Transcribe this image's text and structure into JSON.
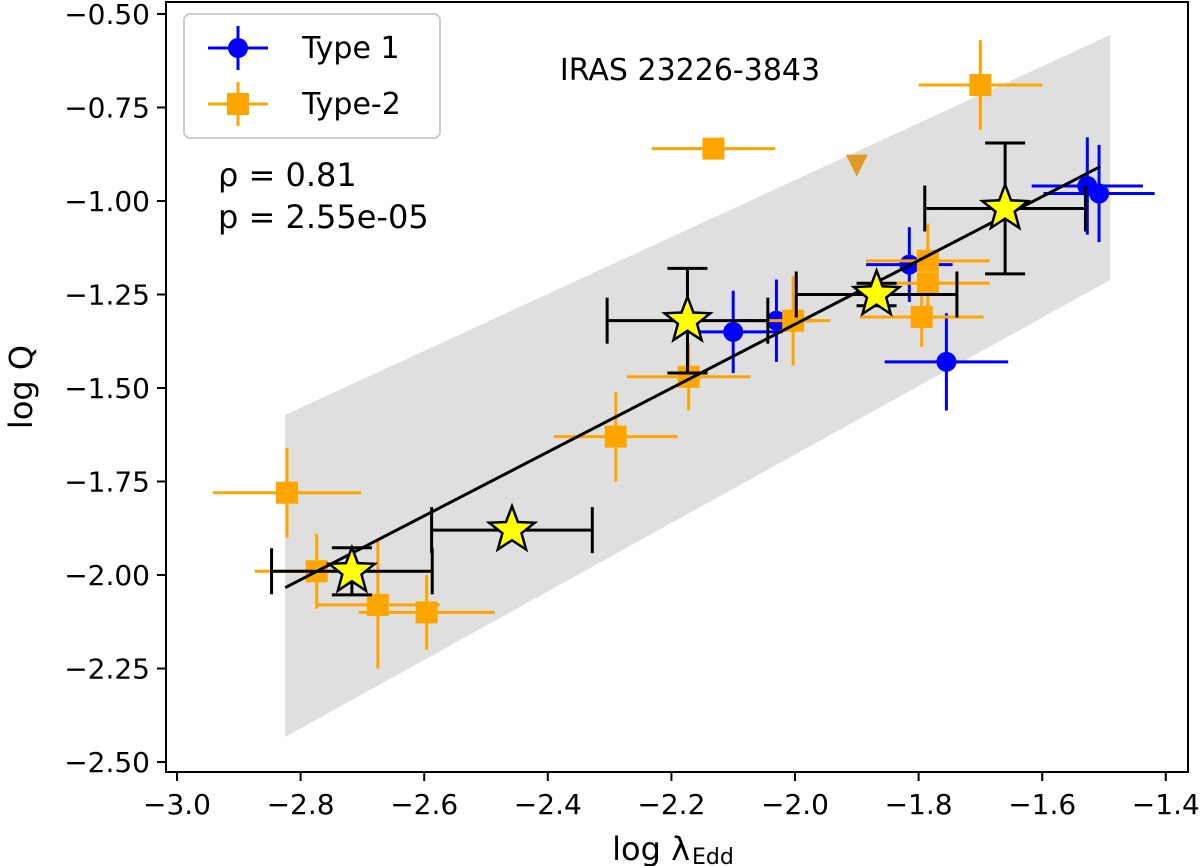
{
  "chart_data": {
    "type": "scatter",
    "xlabel": "log λ",
    "xlabel_sub": "Edd",
    "ylabel": "log Q",
    "xlim": [
      -3.02,
      -1.37
    ],
    "ylim": [
      -2.56,
      -0.47
    ],
    "xticks": [
      -3.0,
      -2.8,
      -2.6,
      -2.4,
      -2.2,
      -2.0,
      -1.8,
      -1.6,
      -1.4
    ],
    "xtick_labels": [
      "−3.0",
      "−2.8",
      "−2.6",
      "−2.4",
      "−2.2",
      "−2.0",
      "−1.8",
      "−1.6",
      "−1.4"
    ],
    "yticks": [
      -2.5,
      -2.25,
      -2.0,
      -1.75,
      -1.5,
      -1.25,
      -1.0,
      -0.75,
      -0.5
    ],
    "ytick_labels": [
      "−2.50",
      "−2.25",
      "−2.00",
      "−1.75",
      "−1.50",
      "−1.25",
      "−1.00",
      "−0.75",
      "−0.50"
    ],
    "grid": false,
    "legend_position": "top-left",
    "annotation": "IRAS 23226-3843",
    "stats": {
      "rho_label": "ρ = 0.81",
      "p_label": "p = 2.55e-05"
    },
    "series": [
      {
        "name": "Type 1",
        "marker": "circle",
        "color": "#0000ff",
        "points": [
          {
            "x": -2.1,
            "y": -1.35,
            "xerr": 0.08,
            "yerr": 0.11
          },
          {
            "x": -2.03,
            "y": -1.32,
            "xerr": 0.06,
            "yerr": 0.11
          },
          {
            "x": -1.815,
            "y": -1.17,
            "xerr": 0.07,
            "yerr": 0.1
          },
          {
            "x": -1.755,
            "y": -1.43,
            "xerr": 0.1,
            "yerr": 0.13
          },
          {
            "x": -1.527,
            "y": -0.96,
            "xerr": 0.09,
            "yerr": 0.13
          },
          {
            "x": -1.508,
            "y": -0.98,
            "xerr": 0.09,
            "yerr": 0.13
          }
        ]
      },
      {
        "name": "Type-2",
        "marker": "square",
        "color": "#ffa500",
        "points": [
          {
            "x": -2.132,
            "y": -0.86,
            "xerr": 0.1,
            "yerr": 0
          },
          {
            "x": -2.003,
            "y": -1.32,
            "xerr": 0.06,
            "yerr": 0.12
          },
          {
            "x": -1.785,
            "y": -1.16,
            "xerr": 0.1,
            "yerr": 0.1
          },
          {
            "x": -1.785,
            "y": -1.22,
            "xerr": 0.1,
            "yerr": 0.1
          },
          {
            "x": -1.795,
            "y": -1.31,
            "xerr": 0.1,
            "yerr": 0.08
          },
          {
            "x": -2.172,
            "y": -1.47,
            "xerr": 0.1,
            "yerr": 0.09
          },
          {
            "x": -2.29,
            "y": -1.63,
            "xerr": 0.1,
            "yerr": 0.12
          },
          {
            "x": -1.7,
            "y": -0.69,
            "xerr": 0.1,
            "yerr": 0.12
          },
          {
            "x": -2.822,
            "y": -1.78,
            "xerr": 0.12,
            "yerr": 0.12
          },
          {
            "x": -2.774,
            "y": -1.99,
            "xerr": 0.1,
            "yerr": 0.1
          },
          {
            "x": -2.675,
            "y": -2.08,
            "xerr": 0.1,
            "yerr": 0.17
          },
          {
            "x": -2.596,
            "y": -2.1,
            "xerr": 0.11,
            "yerr": 0.1
          }
        ]
      },
      {
        "marker": "triangle-down",
        "color": "#e09a2a",
        "points": [
          {
            "x": -1.9,
            "y": -0.9
          }
        ]
      },
      {
        "marker": "star",
        "color": "#ffff00",
        "edge_color": "#000000",
        "points": [
          {
            "x": -2.717,
            "y": -1.99,
            "xerr": 0.13,
            "yerr": 0.063
          },
          {
            "x": -2.458,
            "y": -1.88,
            "xerr": 0.13,
            "yerr": 0
          },
          {
            "x": -2.174,
            "y": -1.32,
            "xerr": 0.13,
            "yerr": 0.14
          },
          {
            "x": -1.868,
            "y": -1.25,
            "xerr": 0.13,
            "yerr": 0.03
          },
          {
            "x": -1.66,
            "y": -1.02,
            "xerr": 0.13,
            "yerr": 0.175
          }
        ]
      }
    ],
    "fit_line": {
      "color": "#000000",
      "x": [
        -2.825,
        -1.506
      ],
      "y": [
        -2.034,
        -0.908
      ]
    },
    "band": {
      "color": "#dfdfdf",
      "x": [
        -2.825,
        -1.49
      ],
      "upper": [
        -1.572,
        -0.556
      ],
      "lower": [
        -2.433,
        -1.211
      ]
    }
  }
}
